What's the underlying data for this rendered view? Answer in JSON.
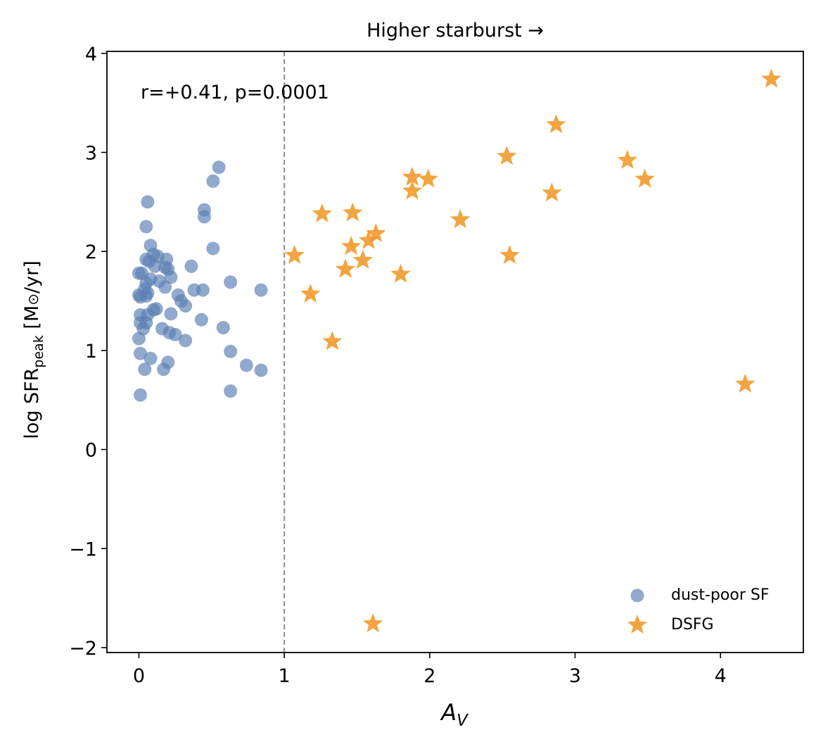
{
  "chart_data": {
    "type": "scatter",
    "title": "Higher starburst →",
    "xlabel": "A",
    "xlabel_sub": "V",
    "ylabel_prefix": "log SFR",
    "ylabel_sub": "peak",
    "ylabel_suffix": " [M",
    "ylabel_sun": "⊙",
    "ylabel_end": "/yr]",
    "annotation": "r=+0.41, p=0.0001",
    "xlim": [
      -0.22,
      4.57
    ],
    "ylim": [
      -2.05,
      4.02
    ],
    "xticks": [
      0,
      1,
      2,
      3,
      4
    ],
    "xtick_labels": [
      "0",
      "1",
      "2",
      "3",
      "4"
    ],
    "yticks": [
      -2,
      -1,
      0,
      1,
      2,
      3,
      4
    ],
    "ytick_labels": [
      "−2",
      "−1",
      "0",
      "1",
      "2",
      "3",
      "4"
    ],
    "threshold_x": 1.0,
    "grid": false,
    "legend_position": "lower-right",
    "colors": {
      "dust_poor": "#5b80b4",
      "dsfg": "#f0941e",
      "threshold": "#8c8c8c"
    },
    "series": [
      {
        "name": "dust-poor SF",
        "marker": "circle",
        "points": [
          [
            0.06,
            2.5
          ],
          [
            0.05,
            2.25
          ],
          [
            0.55,
            2.85
          ],
          [
            0.51,
            2.71
          ],
          [
            0.45,
            2.42
          ],
          [
            0.45,
            2.35
          ],
          [
            0.51,
            2.03
          ],
          [
            0.08,
            2.06
          ],
          [
            0.1,
            1.97
          ],
          [
            0.13,
            1.95
          ],
          [
            0.05,
            1.92
          ],
          [
            0.07,
            1.9
          ],
          [
            0.19,
            1.92
          ],
          [
            0.11,
            1.85
          ],
          [
            0.18,
            1.84
          ],
          [
            0.2,
            1.82
          ],
          [
            0.36,
            1.85
          ],
          [
            0.0,
            1.78
          ],
          [
            0.02,
            1.78
          ],
          [
            0.05,
            1.68
          ],
          [
            0.08,
            1.72
          ],
          [
            0.14,
            1.7
          ],
          [
            0.22,
            1.74
          ],
          [
            0.18,
            1.64
          ],
          [
            0.0,
            1.56
          ],
          [
            0.01,
            1.54
          ],
          [
            0.05,
            1.55
          ],
          [
            0.06,
            1.58
          ],
          [
            0.04,
            1.62
          ],
          [
            0.27,
            1.56
          ],
          [
            0.29,
            1.5
          ],
          [
            0.32,
            1.45
          ],
          [
            0.38,
            1.61
          ],
          [
            0.44,
            1.61
          ],
          [
            0.63,
            1.69
          ],
          [
            0.84,
            1.61
          ],
          [
            0.01,
            1.36
          ],
          [
            0.06,
            1.36
          ],
          [
            0.1,
            1.41
          ],
          [
            0.12,
            1.42
          ],
          [
            0.01,
            1.28
          ],
          [
            0.05,
            1.28
          ],
          [
            0.03,
            1.22
          ],
          [
            0.16,
            1.22
          ],
          [
            0.21,
            1.18
          ],
          [
            0.22,
            1.37
          ],
          [
            0.25,
            1.16
          ],
          [
            0.32,
            1.1
          ],
          [
            0.43,
            1.31
          ],
          [
            0.58,
            1.23
          ],
          [
            0.0,
            1.12
          ],
          [
            0.01,
            0.97
          ],
          [
            0.08,
            0.92
          ],
          [
            0.2,
            0.88
          ],
          [
            0.04,
            0.81
          ],
          [
            0.17,
            0.81
          ],
          [
            0.63,
            0.99
          ],
          [
            0.74,
            0.85
          ],
          [
            0.84,
            0.8
          ],
          [
            0.63,
            0.59
          ],
          [
            0.01,
            0.55
          ]
        ]
      },
      {
        "name": "DSFG",
        "marker": "star",
        "points": [
          [
            4.35,
            3.74
          ],
          [
            2.87,
            3.28
          ],
          [
            2.53,
            2.96
          ],
          [
            3.36,
            2.92
          ],
          [
            3.48,
            2.73
          ],
          [
            1.88,
            2.75
          ],
          [
            1.99,
            2.73
          ],
          [
            1.88,
            2.61
          ],
          [
            2.84,
            2.59
          ],
          [
            1.26,
            2.38
          ],
          [
            1.47,
            2.39
          ],
          [
            2.21,
            2.32
          ],
          [
            1.63,
            2.18
          ],
          [
            1.58,
            2.11
          ],
          [
            1.46,
            2.05
          ],
          [
            1.07,
            1.96
          ],
          [
            2.55,
            1.96
          ],
          [
            1.54,
            1.91
          ],
          [
            1.42,
            1.82
          ],
          [
            1.8,
            1.77
          ],
          [
            1.18,
            1.57
          ],
          [
            1.33,
            1.09
          ],
          [
            4.17,
            0.66
          ],
          [
            1.61,
            -1.76
          ]
        ]
      }
    ]
  }
}
